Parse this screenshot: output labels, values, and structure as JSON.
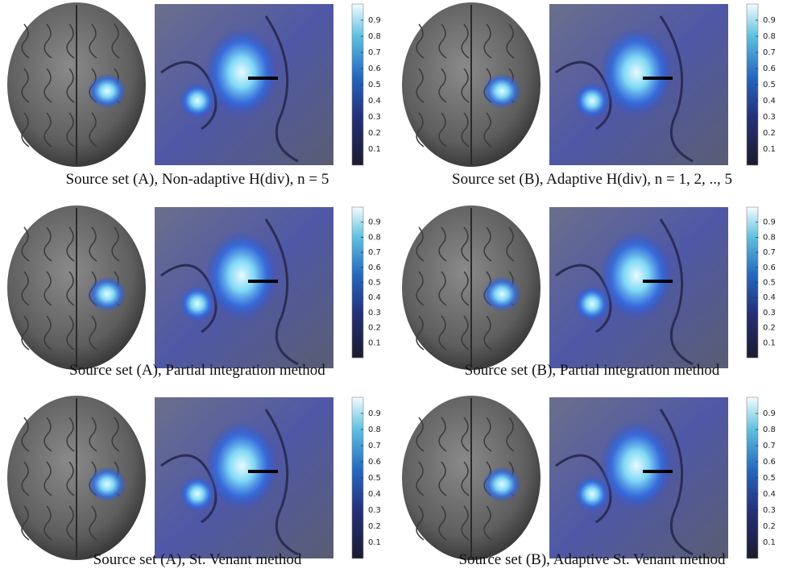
{
  "panels": [
    {
      "caption": "Source set (A), Non-adaptive H(div), n = 5",
      "colorbar": {
        "lim": [
          0,
          1
        ],
        "ticks": [
          0.1,
          0.2,
          0.3,
          0.4,
          0.5,
          0.6,
          0.7,
          0.8,
          0.9
        ]
      }
    },
    {
      "caption": "Source set (B), Adaptive H(div), n = 1, 2, .., 5",
      "colorbar": {
        "lim": [
          0,
          1
        ],
        "ticks": [
          0.1,
          0.2,
          0.3,
          0.4,
          0.5,
          0.6,
          0.7,
          0.8,
          0.9
        ]
      }
    },
    {
      "caption": "Source set (A), Partial integration method",
      "colorbar": {
        "lim": [
          0,
          1
        ],
        "ticks": [
          0.1,
          0.2,
          0.3,
          0.4,
          0.5,
          0.6,
          0.7,
          0.8,
          0.9
        ]
      }
    },
    {
      "caption": "Source set (B), Partial integration method",
      "colorbar": {
        "lim": [
          0,
          1
        ],
        "ticks": [
          0.1,
          0.2,
          0.3,
          0.4,
          0.5,
          0.6,
          0.7,
          0.8,
          0.9
        ]
      }
    },
    {
      "caption": "Source set (A), St. Venant method",
      "colorbar": {
        "lim": [
          0,
          1
        ],
        "ticks": [
          0.1,
          0.2,
          0.3,
          0.4,
          0.5,
          0.6,
          0.7,
          0.8,
          0.9
        ]
      }
    },
    {
      "caption": "Source set (B), Adaptive St. Venant method",
      "colorbar": {
        "lim": [
          0,
          1
        ],
        "ticks": [
          0.1,
          0.2,
          0.3,
          0.4,
          0.5,
          0.6,
          0.7,
          0.8,
          0.9
        ]
      }
    }
  ]
}
